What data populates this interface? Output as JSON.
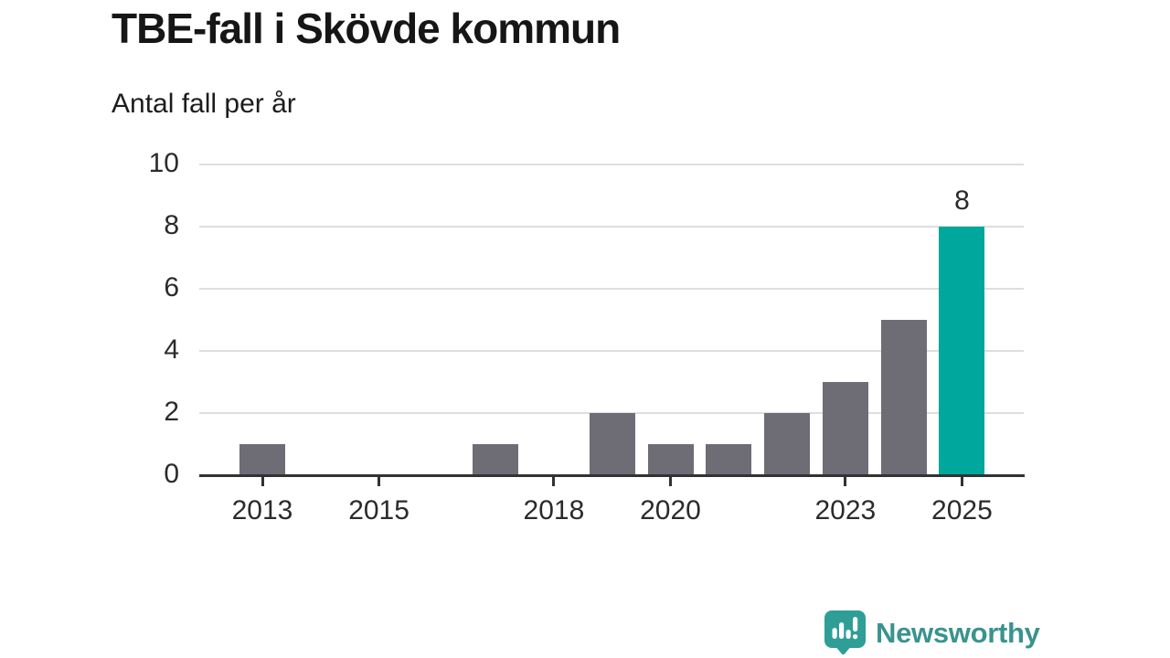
{
  "title": "TBE-fall i Skövde kommun",
  "subtitle": "Antal fall per år",
  "branding": {
    "logo_text": "Newsworthy"
  },
  "colors": {
    "bar_default": "#6e6c75",
    "bar_highlight": "#00a79c",
    "axis": "#323232",
    "grid": "#dedede",
    "tick_text": "#2b2b2b",
    "title_text": "#161616",
    "logo_text": "#39938e",
    "logo_icon": "#2f9e96"
  },
  "chart_data": {
    "type": "bar",
    "title": "TBE-fall i Skövde kommun",
    "subtitle": "Antal fall per år",
    "xlabel": "",
    "ylabel": "Antal fall per år",
    "x": [
      2012,
      2013,
      2014,
      2015,
      2016,
      2017,
      2018,
      2019,
      2020,
      2021,
      2022,
      2023,
      2024,
      2025
    ],
    "values": [
      0,
      1,
      0,
      0,
      0,
      1,
      0,
      2,
      1,
      1,
      2,
      3,
      5,
      8
    ],
    "highlight_year": 2025,
    "data_label": {
      "year": 2025,
      "text": "8"
    },
    "y_ticks": [
      0,
      2,
      4,
      6,
      8,
      10
    ],
    "x_ticks": [
      2013,
      2015,
      2018,
      2020,
      2023,
      2025
    ],
    "ylim": [
      0,
      10
    ],
    "grid": "horizontal-only",
    "legend": "none"
  }
}
